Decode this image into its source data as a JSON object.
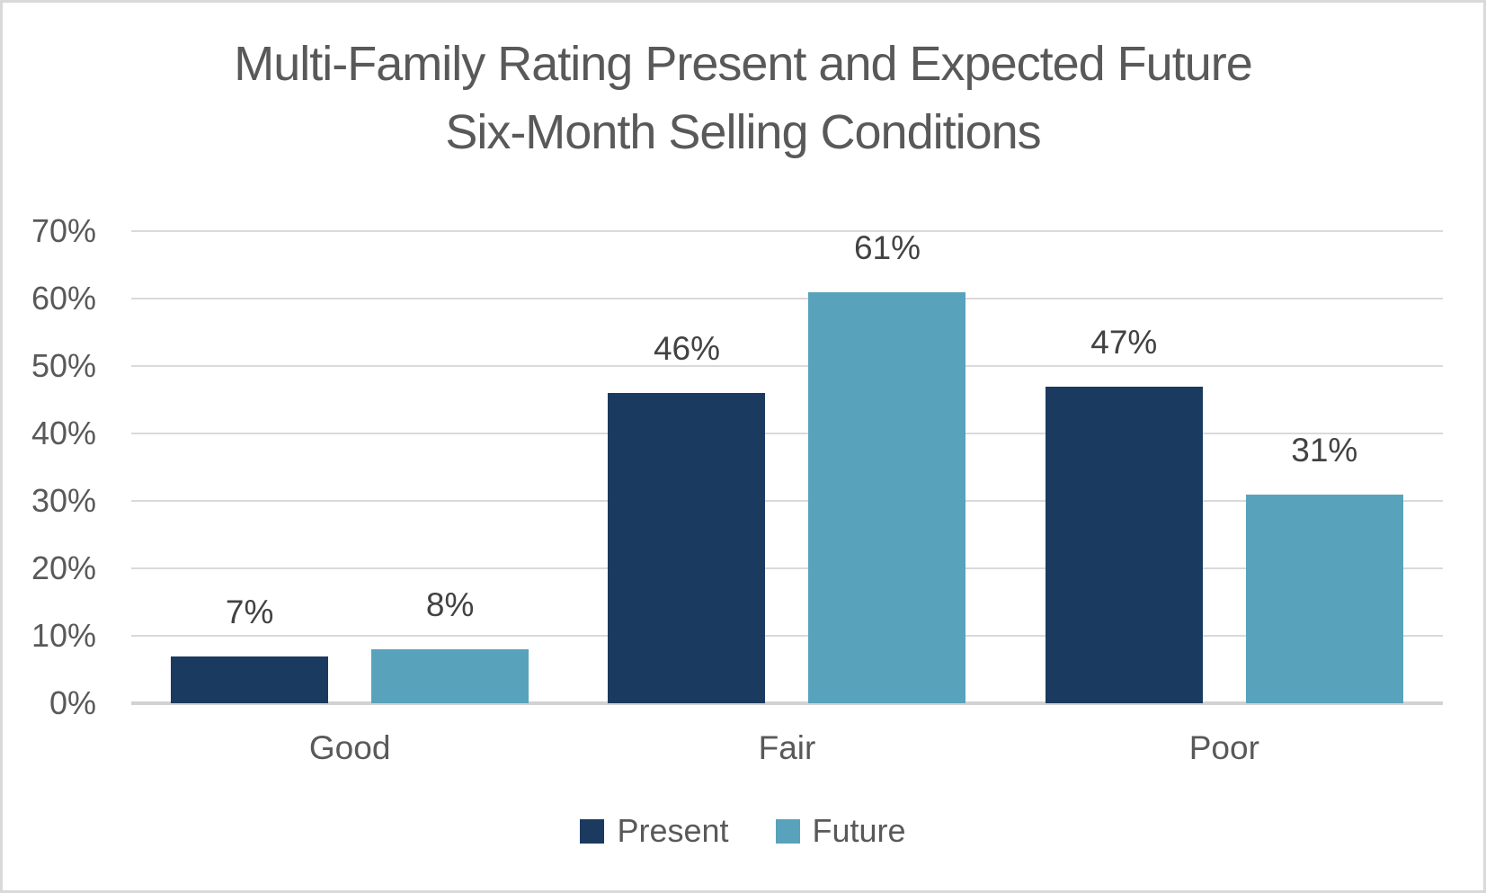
{
  "chart_data": {
    "type": "bar",
    "title_lines": [
      "Multi-Family Rating Present and Expected Future",
      "Six-Month Selling Conditions"
    ],
    "title": "Multi-Family Rating Present and Expected Future Six-Month Selling Conditions",
    "categories": [
      "Good",
      "Fair",
      "Poor"
    ],
    "series": [
      {
        "name": "Present",
        "color": "#1B3A5F",
        "values": [
          7,
          46,
          47
        ]
      },
      {
        "name": "Future",
        "color": "#58A2BC",
        "values": [
          8,
          61,
          31
        ]
      }
    ],
    "xlabel": "",
    "ylabel": "",
    "ylim": [
      0,
      70
    ],
    "y_tick_labels": [
      "0%",
      "10%",
      "20%",
      "30%",
      "40%",
      "50%",
      "60%",
      "70%"
    ],
    "value_suffix": "%",
    "grid": true,
    "legend_position": "bottom"
  },
  "colors": {
    "present_bar": "#1B3A5F",
    "future_bar": "#58A2BC",
    "gridline": "#DADADA",
    "axis_line": "#D2D2D2",
    "title_text": "#595959",
    "axis_text": "#595959",
    "data_label_text": "#424242",
    "page_border": "#D9D9D9",
    "background": "#FFFFFF"
  }
}
